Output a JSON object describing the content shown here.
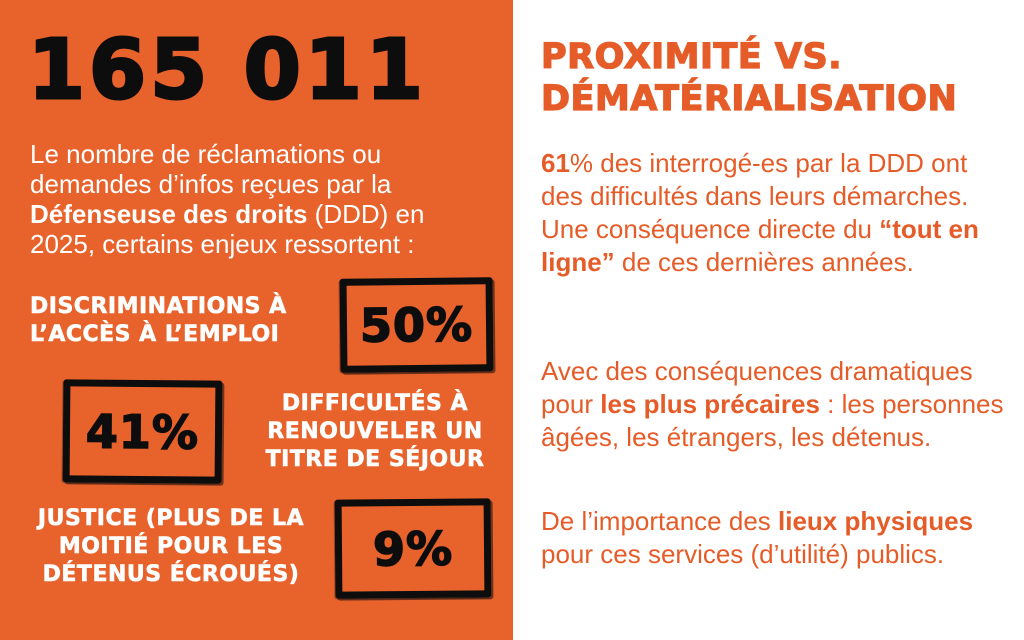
{
  "colors": {
    "orange_background": "#E8622C",
    "orange_text": "#E65C28",
    "black": "#0D0D0D",
    "white": "#FFFFFF"
  },
  "left": {
    "big_number": "165 011",
    "intro": {
      "segments": [
        {
          "text": "Le nombre de réclamations ou demandes d’infos reçues par la ",
          "bold": false
        },
        {
          "text": "Défenseuse des droits",
          "bold": true
        },
        {
          "text": " (DDD) en 2025, certains enjeux ressortent :",
          "bold": false
        }
      ]
    },
    "stats": [
      {
        "label": "DISCRIMINATIONS À L’ACCÈS À L’EMPLOI",
        "value": "50%"
      },
      {
        "label": "DIFFICULTÉS À RENOUVELER UN TITRE DE SÉJOUR",
        "value": "41%"
      },
      {
        "label": "JUSTICE (PLUS DE LA MOITIÉ POUR LES DÉTENUS ÉCROUÉS)",
        "value": "9%"
      }
    ]
  },
  "right": {
    "heading": "PROXIMITÉ VS. DÉMATÉRIALISATION",
    "paragraphs": [
      {
        "segments": [
          {
            "text": "61",
            "bold": true
          },
          {
            "text": "% des interrogé-es par la DDD ont des difficultés dans leurs démarches. Une conséquence directe du ",
            "bold": false
          },
          {
            "text": "“tout en ligne”",
            "bold": true
          },
          {
            "text": " de ces dernières années.",
            "bold": false
          }
        ]
      },
      {
        "segments": [
          {
            "text": "Avec des conséquences dramatiques pour ",
            "bold": false
          },
          {
            "text": "les plus précaires",
            "bold": true
          },
          {
            "text": " : les personnes âgées, les étrangers, les détenus.",
            "bold": false
          }
        ]
      },
      {
        "segments": [
          {
            "text": "De l’importance des ",
            "bold": false
          },
          {
            "text": "lieux physiques",
            "bold": true
          },
          {
            "text": " pour ces services (d’utilité) publics.",
            "bold": false
          }
        ]
      }
    ]
  }
}
